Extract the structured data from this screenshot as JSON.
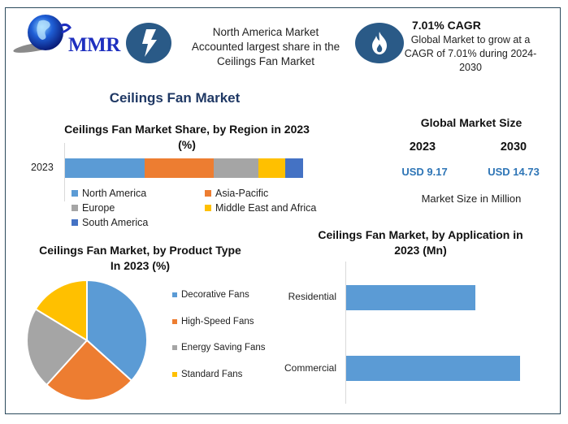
{
  "brand": {
    "logo_text": "MMR"
  },
  "header": {
    "info_1": {
      "icon": "lightning-icon",
      "lines": [
        "North America Market",
        "Accounted largest share in the",
        "Ceilings Fan Market"
      ]
    },
    "info_2": {
      "icon": "flame-icon",
      "headline": "7.01% CAGR",
      "lines": [
        "Global Market to grow at a",
        "CAGR of 7.01% during 2024-",
        "2030"
      ]
    }
  },
  "main_title": "Ceilings Fan Market",
  "market_size": {
    "title": "Global Market Size",
    "year_1": "2023",
    "value_1": "USD 9.17",
    "year_2": "2030",
    "value_2": "USD 14.73",
    "note": "Market Size in Million"
  },
  "colors": {
    "blue": "#5b9bd5",
    "orange": "#ed7d31",
    "gray": "#a5a5a5",
    "yellow": "#ffc000",
    "dark_blue": "#4472c4",
    "icon_bg": "#2a5a87",
    "title_navy": "#1f3864",
    "value_blue": "#2e75b6",
    "frame": "#2b4a5c"
  },
  "chart_data": [
    {
      "type": "bar",
      "orientation": "horizontal-stacked-100",
      "title": "Ceilings Fan Market Share, by Region in 2023 (%)",
      "title_lines": [
        "Ceilings Fan Market Share, by Region in 2023",
        "(%)"
      ],
      "categories": [
        "2023"
      ],
      "series": [
        {
          "name": "North America",
          "values": [
            33.4
          ],
          "color": "#5b9bd5"
        },
        {
          "name": "Asia-Pacific",
          "values": [
            29.0
          ],
          "color": "#ed7d31"
        },
        {
          "name": "Europe",
          "values": [
            18.8
          ],
          "color": "#a5a5a5"
        },
        {
          "name": "Middle East and Africa",
          "values": [
            11.3
          ],
          "color": "#ffc000"
        },
        {
          "name": "South America",
          "values": [
            7.5
          ],
          "color": "#4472c4"
        }
      ],
      "legend_position": "bottom",
      "grid": false
    },
    {
      "type": "pie",
      "title": "Ceilings Fan Market, by Product Type In 2023 (%)",
      "title_lines": [
        "Ceilings Fan Market, by Product Type",
        "In 2023 (%)"
      ],
      "categories": [
        "Decorative Fans",
        "High-Speed Fans",
        "Energy Saving Fans",
        "Standard Fans"
      ],
      "values": [
        36.7,
        25.0,
        22.0,
        16.3
      ],
      "colors": [
        "#5b9bd5",
        "#ed7d31",
        "#a5a5a5",
        "#ffc000"
      ],
      "legend_position": "right"
    },
    {
      "type": "bar",
      "orientation": "horizontal",
      "title": "Ceilings Fan Market, by Application in 2023 (Mn)",
      "title_lines": [
        "Ceilings Fan Market, by Application in",
        "2023 (Mn)"
      ],
      "categories": [
        "Residential",
        "Commercial"
      ],
      "values": [
        159,
        214
      ],
      "value_note": "relative bar lengths in px; no axis values shown",
      "color": "#5b9bd5",
      "grid": false
    }
  ]
}
